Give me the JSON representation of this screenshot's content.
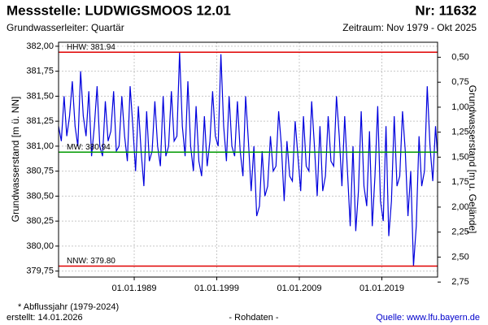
{
  "chart_data": {
    "type": "line",
    "title": "Messstelle: LUDWIGSMOOS 12.01",
    "number_label": "Nr: 11632",
    "subtitle": "Grundwasserleiter: Quartär",
    "period": "Zeitraum: Nov 1979 - Okt 2025",
    "y_label": "Grundwasserstand [m ü. NN]",
    "y2_label": "Grundwasserstand [m u. Gelände]",
    "footnote": "* Abflussjahr (1979-2024)",
    "created": "erstellt:  14.01.2026",
    "data_note": "- Rohdaten -",
    "source": "Quelle: www.lfu.bayern.de",
    "xlim": [
      "1979-11",
      "2025-10"
    ],
    "xticks": [
      {
        "value": "1989-01",
        "label": "01.01.1989"
      },
      {
        "value": "1999-01",
        "label": "01.01.1999"
      },
      {
        "value": "2009-01",
        "label": "01.01.2009"
      },
      {
        "value": "2019-01",
        "label": "01.01.2019"
      }
    ],
    "ylim": [
      379.69,
      382.04
    ],
    "yticks": [
      {
        "value": 379.75,
        "label": "379,75"
      },
      {
        "value": 380,
        "label": "380,00"
      },
      {
        "value": 380.25,
        "label": "380,25"
      },
      {
        "value": 380.5,
        "label": "380,50"
      },
      {
        "value": 380.75,
        "label": "380,75"
      },
      {
        "value": 381,
        "label": "381,00"
      },
      {
        "value": 381.25,
        "label": "381,25"
      },
      {
        "value": 381.5,
        "label": "381,50"
      },
      {
        "value": 381.75,
        "label": "381,75"
      },
      {
        "value": 382,
        "label": "382,00"
      }
    ],
    "y2lim": [
      2.7,
      0.35
    ],
    "y2ticks": [
      {
        "value": 0.5,
        "label": "0,50"
      },
      {
        "value": 0.75,
        "label": "0,75"
      },
      {
        "value": 1,
        "label": "1,00"
      },
      {
        "value": 1.25,
        "label": "1,25"
      },
      {
        "value": 1.5,
        "label": "1,50"
      },
      {
        "value": 1.75,
        "label": "1,75"
      },
      {
        "value": 2,
        "label": "2,00"
      },
      {
        "value": 2.25,
        "label": "2,25"
      },
      {
        "value": 2.5,
        "label": "2,50"
      },
      {
        "value": 2.75,
        "label": "2,75"
      }
    ],
    "grid": true,
    "reference_lines": [
      {
        "value": 381.94,
        "label": "HHW: 381.94",
        "color": "#e00000"
      },
      {
        "value": 380.94,
        "label": "MW: 380.94",
        "color": "#009a00"
      },
      {
        "value": 379.8,
        "label": "NNW: 379.80",
        "color": "#e00000"
      }
    ],
    "x": [
      "1979-11",
      "1980-03",
      "1980-07",
      "1980-11",
      "1981-03",
      "1981-07",
      "1981-11",
      "1982-03",
      "1982-07",
      "1982-11",
      "1983-03",
      "1983-07",
      "1983-11",
      "1984-03",
      "1984-07",
      "1984-11",
      "1985-03",
      "1985-07",
      "1985-11",
      "1986-03",
      "1986-07",
      "1986-11",
      "1987-03",
      "1987-07",
      "1987-11",
      "1988-03",
      "1988-07",
      "1988-11",
      "1989-03",
      "1989-07",
      "1989-11",
      "1990-03",
      "1990-07",
      "1990-11",
      "1991-03",
      "1991-07",
      "1991-11",
      "1992-03",
      "1992-07",
      "1992-11",
      "1993-03",
      "1993-07",
      "1993-11",
      "1994-03",
      "1994-07",
      "1994-11",
      "1995-03",
      "1995-07",
      "1995-11",
      "1996-03",
      "1996-07",
      "1996-11",
      "1997-03",
      "1997-07",
      "1997-11",
      "1998-03",
      "1998-07",
      "1998-11",
      "1999-03",
      "1999-07",
      "1999-11",
      "2000-03",
      "2000-07",
      "2000-11",
      "2001-03",
      "2001-07",
      "2001-11",
      "2002-03",
      "2002-07",
      "2002-11",
      "2003-03",
      "2003-07",
      "2003-11",
      "2004-03",
      "2004-07",
      "2004-11",
      "2005-03",
      "2005-07",
      "2005-11",
      "2006-03",
      "2006-07",
      "2006-11",
      "2007-03",
      "2007-07",
      "2007-11",
      "2008-03",
      "2008-07",
      "2008-11",
      "2009-03",
      "2009-07",
      "2009-11",
      "2010-03",
      "2010-07",
      "2010-11",
      "2011-03",
      "2011-07",
      "2011-11",
      "2012-03",
      "2012-07",
      "2012-11",
      "2013-03",
      "2013-07",
      "2013-11",
      "2014-03",
      "2014-07",
      "2014-11",
      "2015-03",
      "2015-07",
      "2015-11",
      "2016-03",
      "2016-07",
      "2016-11",
      "2017-03",
      "2017-07",
      "2017-11",
      "2018-03",
      "2018-07",
      "2018-11",
      "2019-03",
      "2019-07",
      "2019-11",
      "2020-03",
      "2020-07",
      "2020-11",
      "2021-03",
      "2021-07",
      "2021-11",
      "2022-03",
      "2022-07",
      "2022-11",
      "2023-03",
      "2023-07",
      "2023-11",
      "2024-03",
      "2024-07",
      "2024-11",
      "2025-03",
      "2025-07",
      "2025-10"
    ],
    "series": [
      {
        "color": "#0000dd",
        "values": [
          381.2,
          381.05,
          381.5,
          381.1,
          381.3,
          381.65,
          381.2,
          381.0,
          381.75,
          381.3,
          381.1,
          381.55,
          380.9,
          381.2,
          381.6,
          381.0,
          380.9,
          381.45,
          381.05,
          381.15,
          381.55,
          380.95,
          381.0,
          381.5,
          381.1,
          380.85,
          381.6,
          381.2,
          380.75,
          381.4,
          380.95,
          380.6,
          381.35,
          380.85,
          380.95,
          381.45,
          381.0,
          380.8,
          381.5,
          380.9,
          381.0,
          381.55,
          381.05,
          381.1,
          381.94,
          381.2,
          380.9,
          381.65,
          381.0,
          380.75,
          381.4,
          380.85,
          380.7,
          381.3,
          380.8,
          381.05,
          381.55,
          381.1,
          381.0,
          381.92,
          381.2,
          380.85,
          381.5,
          381.0,
          380.9,
          381.45,
          380.95,
          380.7,
          381.5,
          381.05,
          380.55,
          381.0,
          380.3,
          380.4,
          380.95,
          380.5,
          380.6,
          381.1,
          380.75,
          380.8,
          381.35,
          381.0,
          380.45,
          381.05,
          380.7,
          380.65,
          381.25,
          380.9,
          380.55,
          381.3,
          380.8,
          380.75,
          381.45,
          381.0,
          380.5,
          381.2,
          380.55,
          380.7,
          381.3,
          380.85,
          380.8,
          381.5,
          381.1,
          380.6,
          381.3,
          380.75,
          380.2,
          381.0,
          380.15,
          380.55,
          381.35,
          380.6,
          380.4,
          381.15,
          380.2,
          380.7,
          381.4,
          380.45,
          380.25,
          381.2,
          380.1,
          380.45,
          381.3,
          380.6,
          380.7,
          381.35,
          380.95,
          380.3,
          380.75,
          379.8,
          380.2,
          381.1,
          380.6,
          380.75,
          381.6,
          381.0,
          380.65,
          381.2,
          380.9
        ]
      }
    ]
  }
}
